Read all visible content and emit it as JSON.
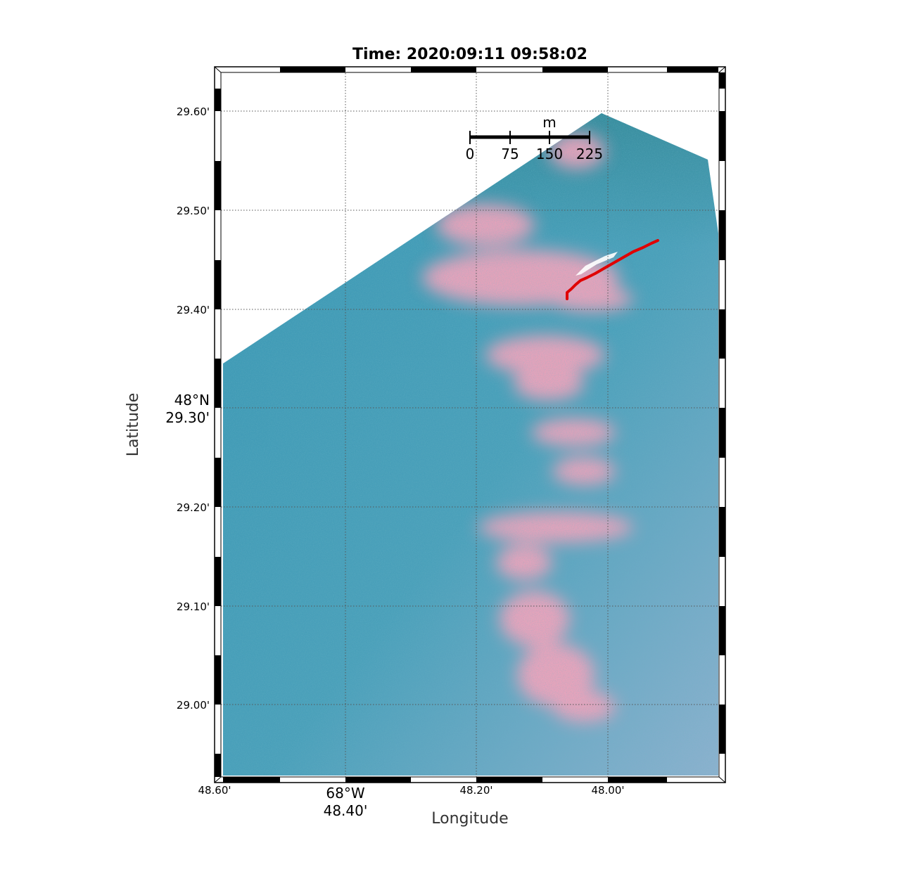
{
  "title": "Time: 2020:09:11 09:58:02",
  "axes": {
    "xlabel": "Longitude",
    "ylabel": "Latitude"
  },
  "lon_ticks": [
    "48.60'",
    "68°W",
    "48.40'",
    "48.20'",
    "48.00'"
  ],
  "lat_ticks": [
    "29.60'",
    "29.50'",
    "29.40'",
    "48°N",
    "29.30'",
    "29.20'",
    "29.10'",
    "29.00'"
  ],
  "scale_bar": {
    "unit": "m",
    "labels": [
      "0",
      "75",
      "150",
      "225"
    ]
  },
  "colors": {
    "water": "#3f9bb6",
    "plume": "#f4a3bb",
    "track": "#e00000",
    "grid": "#555555"
  }
}
